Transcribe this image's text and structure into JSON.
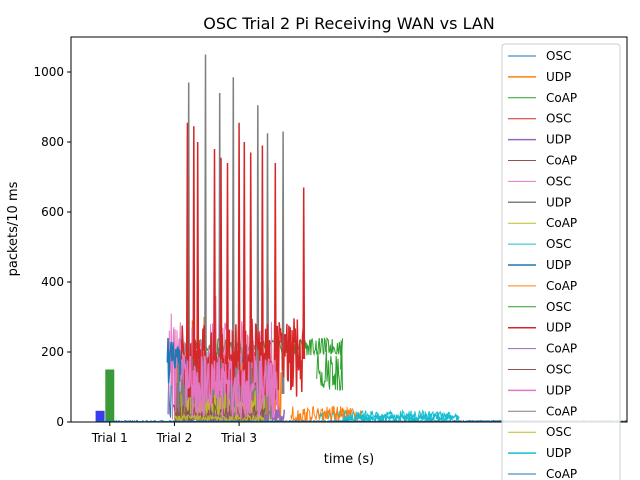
{
  "chart_data": {
    "type": "line",
    "title": "OSC Trial 2 Pi Receiving WAN vs LAN",
    "xlabel": "time (s)",
    "ylabel": "packets/10 ms",
    "xlim": [
      0,
      860
    ],
    "ylim": [
      0,
      1100
    ],
    "yticks": [
      0,
      200,
      400,
      600,
      800,
      1000
    ],
    "xtick_labels": [
      {
        "x": 60,
        "label": "Trial 1"
      },
      {
        "x": 160,
        "label": "Trial 2"
      },
      {
        "x": 260,
        "label": "Trial 3"
      }
    ],
    "bars": [
      {
        "x": 45,
        "value": 32,
        "color": "#3a3af5"
      },
      {
        "x": 60,
        "value": 150,
        "color": "#3a9a3a"
      }
    ],
    "legend_position": "right",
    "series": [
      {
        "name": "OSC",
        "color": "#1f77b4",
        "width": 1.0,
        "x0": 150,
        "x1": 295,
        "base": 40,
        "amp": 180,
        "spikes": []
      },
      {
        "name": "UDP",
        "color": "#ff7f0e",
        "width": 1.5,
        "x0": 160,
        "x1": 325,
        "base": 50,
        "amp": 120,
        "spikes": [
          [
            188,
            290
          ],
          [
            206,
            300
          ]
        ]
      },
      {
        "name": "CoAP",
        "color": "#2ca02c",
        "width": 1.0,
        "x0": 165,
        "x1": 420,
        "base": 215,
        "amp": 25,
        "spikes": []
      },
      {
        "name": "OSC",
        "color": "#d62728",
        "width": 1.0,
        "x0": 170,
        "x1": 300,
        "base": 120,
        "amp": 100,
        "spikes": []
      },
      {
        "name": "UDP",
        "color": "#9467bd",
        "width": 1.5,
        "x0": 160,
        "x1": 330,
        "base": 15,
        "amp": 30,
        "spikes": []
      },
      {
        "name": "CoAP",
        "color": "#8c564b",
        "width": 1.0,
        "x0": 160,
        "x1": 300,
        "base": 60,
        "amp": 80,
        "spikes": []
      },
      {
        "name": "OSC",
        "color": "#e377c2",
        "width": 1.0,
        "x0": 150,
        "x1": 320,
        "base": 140,
        "amp": 150,
        "spikes": [
          [
            155,
            310
          ],
          [
            224,
            360
          ],
          [
            305,
            400
          ]
        ]
      },
      {
        "name": "UDP",
        "color": "#7f7f7f",
        "width": 1.5,
        "x0": 165,
        "x1": 310,
        "base": 80,
        "amp": 120,
        "spikes": [
          [
            182,
            970
          ],
          [
            208,
            1050
          ],
          [
            230,
            940
          ],
          [
            251,
            985
          ],
          [
            289,
            905
          ],
          [
            304,
            825
          ],
          [
            328,
            830
          ]
        ]
      },
      {
        "name": "CoAP",
        "color": "#bcbd22",
        "width": 1.0,
        "x0": 170,
        "x1": 300,
        "base": 30,
        "amp": 60,
        "spikes": []
      },
      {
        "name": "OSC",
        "color": "#17becf",
        "width": 1.0,
        "x0": 380,
        "x1": 590,
        "base": 18,
        "amp": 15,
        "spikes": []
      },
      {
        "name": "UDP",
        "color": "#1f77b4",
        "width": 1.5,
        "x0": 150,
        "x1": 170,
        "base": 170,
        "amp": 60,
        "spikes": [
          [
            150,
            240
          ]
        ]
      },
      {
        "name": "CoAP",
        "color": "#ff7f0e",
        "width": 1.0,
        "x0": 340,
        "x1": 450,
        "base": 20,
        "amp": 25,
        "spikes": []
      },
      {
        "name": "OSC",
        "color": "#2ca02c",
        "width": 1.0,
        "x0": 380,
        "x1": 420,
        "base": 150,
        "amp": 60,
        "spikes": [
          [
            418,
            230
          ]
        ]
      },
      {
        "name": "UDP",
        "color": "#d62728",
        "width": 1.5,
        "x0": 170,
        "x1": 360,
        "base": 180,
        "amp": 120,
        "spikes": [
          [
            180,
            855
          ],
          [
            190,
            845
          ],
          [
            196,
            800
          ],
          [
            222,
            780
          ],
          [
            232,
            755
          ],
          [
            242,
            740
          ],
          [
            260,
            855
          ],
          [
            268,
            800
          ],
          [
            278,
            770
          ],
          [
            296,
            790
          ],
          [
            316,
            740
          ],
          [
            360,
            670
          ]
        ]
      },
      {
        "name": "CoAP",
        "color": "#9467bd",
        "width": 1.0,
        "x0": 160,
        "x1": 300,
        "base": 10,
        "amp": 20,
        "spikes": []
      },
      {
        "name": "OSC",
        "color": "#8c564b",
        "width": 1.0,
        "x0": 160,
        "x1": 300,
        "base": 20,
        "amp": 30,
        "spikes": []
      },
      {
        "name": "UDP",
        "color": "#e377c2",
        "width": 1.5,
        "x0": 170,
        "x1": 320,
        "base": 100,
        "amp": 90,
        "spikes": []
      },
      {
        "name": "CoAP",
        "color": "#7f7f7f",
        "width": 1.0,
        "x0": 300,
        "x1": 860,
        "base": 2,
        "amp": 2,
        "spikes": []
      },
      {
        "name": "OSC",
        "color": "#bcbd22",
        "width": 1.0,
        "x0": 160,
        "x1": 300,
        "base": 10,
        "amp": 10,
        "spikes": []
      },
      {
        "name": "UDP",
        "color": "#17becf",
        "width": 1.5,
        "x0": 420,
        "x1": 600,
        "base": 12,
        "amp": 10,
        "spikes": []
      },
      {
        "name": "CoAP",
        "color": "#1f77b4",
        "width": 1.0,
        "x0": 40,
        "x1": 860,
        "base": 2,
        "amp": 2,
        "spikes": []
      }
    ]
  }
}
